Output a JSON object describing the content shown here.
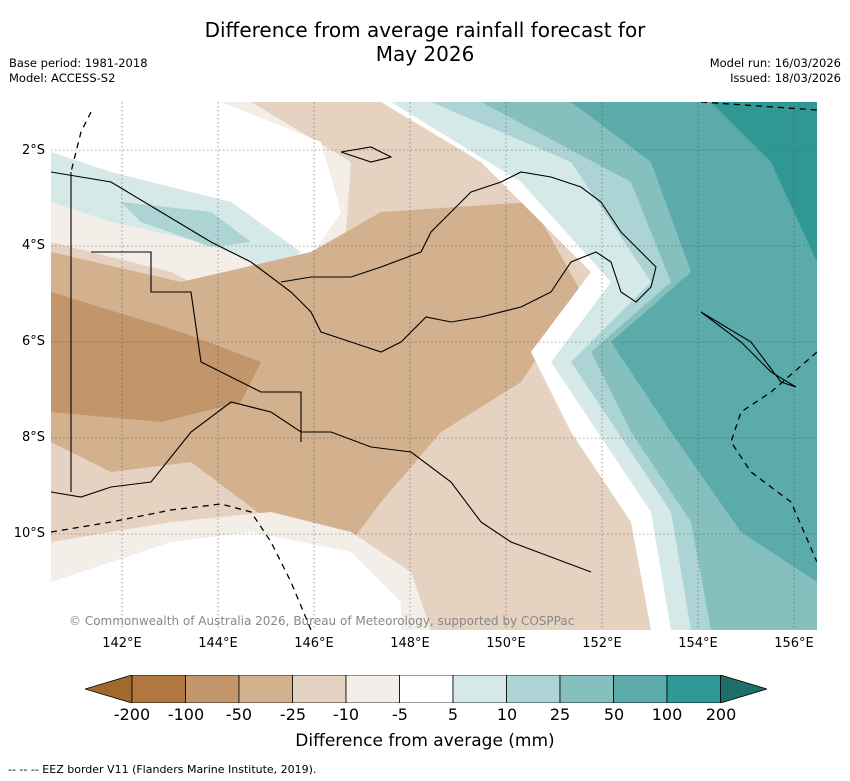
{
  "title_line1": "Difference from average rainfall forecast for",
  "title_line2": "May 2026",
  "meta_left": [
    "Base period: 1981-2018",
    "Model: ACCESS-S2"
  ],
  "meta_right": [
    "Model run: 16/03/2026",
    "Issued: 18/03/2026"
  ],
  "lat_labels": [
    "2°S",
    "4°S",
    "6°S",
    "8°S",
    "10°S"
  ],
  "lon_labels": [
    "142°E",
    "144°E",
    "146°E",
    "148°E",
    "150°E",
    "152°E",
    "154°E",
    "156°E"
  ],
  "copyright": "© Commonwealth of Australia 2026, Bureau of Meteorology, supported by COSPPac",
  "colorbar": {
    "title": "Difference from average (mm)",
    "ticks": [
      "-200",
      "-100",
      "-50",
      "-25",
      "-10",
      "-5",
      "5",
      "10",
      "25",
      "50",
      "100",
      "200"
    ],
    "colors": [
      "#a0692e",
      "#b07840",
      "#c2956a",
      "#d3b08e",
      "#e6d2c0",
      "#f3eee8",
      "#ffffff",
      "#d5e9e8",
      "#acd4d4",
      "#85c0bf",
      "#5aabaa",
      "#2f9894",
      "#1f6e6b"
    ]
  },
  "footer": "--  --  -- EEZ border V11 (Flanders Marine Institute, 2019)."
}
